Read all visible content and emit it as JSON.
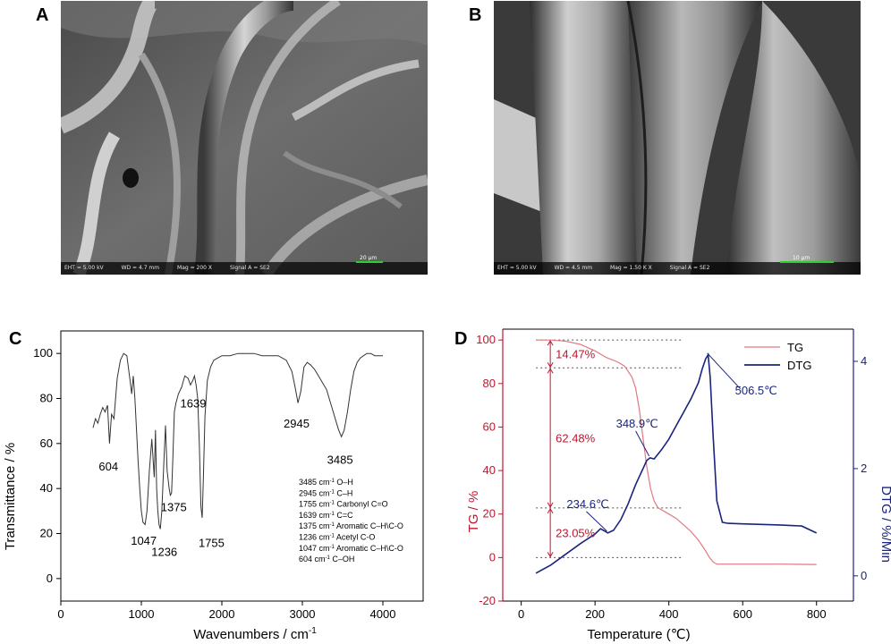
{
  "panels": {
    "a": "A",
    "b": "B",
    "c": "C",
    "d": "D"
  },
  "sem_a": {
    "eht": "EHT = 5.00 kV",
    "wd": "WD = 4.7 mm",
    "mag": "Mag = 200 X",
    "signal": "Signal A = SE2",
    "scale": "20 µm"
  },
  "sem_b": {
    "eht": "EHT = 5.00 kV",
    "wd": "WD = 4.5 mm",
    "mag": "Mag = 1.50 K X",
    "signal": "Signal A = SE2",
    "scale": "10 µm"
  },
  "chart_data": [
    {
      "type": "line",
      "panel": "C",
      "xlabel": "Wavenumbers / cm",
      "xlabel_sup": "-1",
      "ylabel": "Transmittance / %",
      "xlim": [
        0,
        4500
      ],
      "ylim": [
        -10,
        110
      ],
      "xticks": [
        0,
        1000,
        2000,
        3000,
        4000
      ],
      "yticks": [
        0,
        20,
        40,
        60,
        80,
        100
      ],
      "color": "#333333",
      "series": [
        {
          "x": [
            400,
            430,
            460,
            490,
            520,
            550,
            580,
            604,
            630,
            660,
            700,
            740,
            780,
            820,
            860,
            880,
            900,
            920,
            940,
            960,
            980,
            1000,
            1020,
            1047,
            1070,
            1100,
            1130,
            1160,
            1175,
            1190,
            1205,
            1220,
            1236,
            1255,
            1280,
            1300,
            1320,
            1345,
            1360,
            1375,
            1390,
            1410,
            1430,
            1460,
            1500,
            1540,
            1580,
            1610,
            1639,
            1660,
            1680,
            1700,
            1720,
            1740,
            1755,
            1770,
            1790,
            1820,
            1860,
            1900,
            1950,
            2000,
            2100,
            2200,
            2300,
            2400,
            2500,
            2600,
            2700,
            2800,
            2870,
            2910,
            2945,
            2980,
            3020,
            3060,
            3100,
            3150,
            3200,
            3250,
            3300,
            3350,
            3400,
            3450,
            3485,
            3520,
            3560,
            3600,
            3640,
            3680,
            3720,
            3760,
            3800,
            3850,
            3900,
            3950,
            4000
          ],
          "y": [
            67,
            71,
            69,
            73,
            76,
            74,
            77,
            60,
            73,
            71,
            89,
            97,
            100,
            99,
            88,
            82,
            90,
            80,
            66,
            52,
            40,
            30,
            25,
            24,
            30,
            48,
            62,
            45,
            66,
            40,
            30,
            24,
            22,
            30,
            52,
            68,
            48,
            40,
            37,
            38,
            52,
            74,
            78,
            82,
            85,
            90,
            89,
            86,
            88,
            90,
            86,
            80,
            60,
            32,
            27,
            44,
            72,
            88,
            94,
            97,
            98,
            99,
            99,
            100,
            100,
            100,
            99,
            99,
            99,
            97,
            92,
            85,
            78,
            83,
            94,
            96,
            95,
            93,
            90,
            87,
            84,
            78,
            72,
            66,
            63,
            66,
            74,
            84,
            92,
            96,
            98,
            99,
            100,
            100,
            99,
            99,
            99
          ]
        }
      ],
      "peak_labels": [
        "604",
        "1047",
        "1236",
        "1375",
        "1639",
        "1755",
        "2945",
        "3485"
      ],
      "assignments": [
        {
          "wn": "3485 cm",
          "sup": "-1",
          "text": " O–H"
        },
        {
          "wn": "2945 cm",
          "sup": "-1",
          "text": " C–H"
        },
        {
          "wn": "1755 cm",
          "sup": "-1",
          "text": " Carbonyl C=O"
        },
        {
          "wn": "1639 cm",
          "sup": "-1",
          "text": " C=C"
        },
        {
          "wn": "1375 cm",
          "sup": "-1",
          "text": " Aromatic C–H\\C-O"
        },
        {
          "wn": "1236 cm",
          "sup": "-1",
          "text": " Acetyl C-O"
        },
        {
          "wn": "1047 cm",
          "sup": "-1",
          "text": " Aromatic C–H\\C-O"
        },
        {
          "wn": "604 cm",
          "sup": "-1",
          "text": " C–OH"
        }
      ]
    },
    {
      "type": "line",
      "panel": "D",
      "xlabel": "Temperature (℃)",
      "ylabel_left": "TG / %",
      "ylabel_right": "DTG / %/Min",
      "xlim": [
        -50,
        900
      ],
      "ylim_left": [
        -20,
        105
      ],
      "ylim_right": [
        -0.47,
        4.6
      ],
      "xticks": [
        0,
        200,
        400,
        600,
        800
      ],
      "yticks_left": [
        -20,
        0,
        20,
        40,
        60,
        80,
        100
      ],
      "yticks_right": [
        0,
        2,
        4
      ],
      "left_color": "#c0152f",
      "right_color": "#1a237e",
      "legend_position": "top-right",
      "series": [
        {
          "name": "TG",
          "color": "#e07a80",
          "x": [
            40,
            80,
            120,
            160,
            200,
            230,
            260,
            280,
            300,
            310,
            320,
            330,
            340,
            350,
            360,
            370,
            380,
            390,
            400,
            420,
            440,
            460,
            480,
            500,
            510,
            520,
            530,
            560,
            600,
            700,
            800
          ],
          "y": [
            100,
            100,
            99.5,
            98,
            95,
            92,
            90,
            88,
            83,
            78,
            68,
            55,
            42,
            32,
            26,
            23,
            22,
            21,
            20,
            18,
            15,
            12,
            8,
            3,
            0,
            -2,
            -3,
            -3,
            -3,
            -3,
            -3.2
          ]
        },
        {
          "name": "DTG",
          "color": "#1a237e",
          "x": [
            40,
            80,
            120,
            160,
            200,
            215,
            225,
            234.6,
            250,
            270,
            290,
            310,
            330,
            340,
            348.9,
            360,
            380,
            400,
            420,
            440,
            460,
            480,
            490,
            500,
            506.5,
            512,
            520,
            530,
            545,
            560,
            600,
            700,
            760,
            800
          ],
          "y": [
            0.05,
            0.2,
            0.4,
            0.6,
            0.78,
            0.88,
            0.84,
            0.8,
            0.85,
            1.05,
            1.35,
            1.7,
            2.0,
            2.15,
            2.2,
            2.18,
            2.35,
            2.55,
            2.8,
            3.05,
            3.3,
            3.6,
            3.85,
            4.05,
            4.12,
            3.7,
            2.6,
            1.4,
            1.0,
            0.98,
            0.97,
            0.95,
            0.93,
            0.8
          ]
        }
      ],
      "annotations": [
        {
          "label": "234.6℃",
          "x": 234.6,
          "dtg": 0.8
        },
        {
          "label": "348.9℃",
          "x": 348.9,
          "dtg": 2.2
        },
        {
          "label": "506.5℃",
          "x": 506.5,
          "dtg": 4.12
        }
      ],
      "ref_lines_tg": [
        100,
        87.2,
        22.8,
        0
      ],
      "mass_loss_labels": [
        "14.47%",
        "62.48%",
        "23.05%"
      ],
      "legend": [
        "TG",
        "DTG"
      ]
    }
  ]
}
